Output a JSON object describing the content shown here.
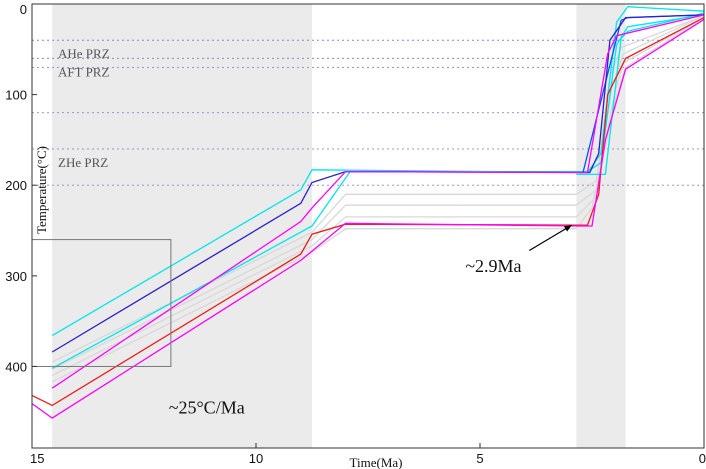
{
  "chart_data": {
    "type": "line",
    "title": "",
    "xlabel": "Time(Ma)",
    "ylabel": "Temperature(°C)",
    "xlim": [
      15,
      0
    ],
    "ylim": [
      0,
      490
    ],
    "x_ticks": [
      15,
      10,
      5,
      0
    ],
    "y_ticks": [
      0,
      100,
      200,
      300,
      400
    ],
    "x_tick_labels": [
      "15",
      "10",
      "5",
      "0"
    ],
    "y_tick_labels": [
      "0",
      "100",
      "200",
      "300",
      "400"
    ],
    "grid": false,
    "shaded_intervals": [
      {
        "from": 14.55,
        "to": 8.75,
        "color": "#ebebeb"
      },
      {
        "from": 2.85,
        "to": 1.75,
        "color": "#ebebeb"
      }
    ],
    "partial_retention_zones": [
      {
        "label": "AHe PRZ",
        "top": 40,
        "bottom": 70
      },
      {
        "label": "AFT PRZ",
        "top": 60,
        "bottom": 120
      },
      {
        "label": "ZHe PRZ",
        "top": 160,
        "bottom": 200
      }
    ],
    "series": [
      {
        "color": "#d8d8d8",
        "points": [
          [
            14.55,
            410
          ],
          [
            8.75,
            267
          ],
          [
            8,
            235
          ],
          [
            2.85,
            235
          ],
          [
            2.45,
            215
          ],
          [
            2.0,
            100
          ],
          [
            1.8,
            65
          ],
          [
            0,
            15
          ]
        ]
      },
      {
        "color": "#d8d8d8",
        "points": [
          [
            14.55,
            417
          ],
          [
            8.75,
            274
          ],
          [
            8,
            248
          ],
          [
            2.85,
            248
          ],
          [
            2.5,
            225
          ],
          [
            2.0,
            110
          ],
          [
            1.75,
            70
          ],
          [
            0,
            15
          ]
        ]
      },
      {
        "color": "#d8d8d8",
        "points": [
          [
            14.55,
            403
          ],
          [
            8.75,
            260
          ],
          [
            8,
            222
          ],
          [
            2.85,
            222
          ],
          [
            2.4,
            205
          ],
          [
            2.05,
            90
          ],
          [
            1.8,
            55
          ],
          [
            0,
            13
          ]
        ]
      },
      {
        "color": "#d8d8d8",
        "points": [
          [
            14.55,
            395
          ],
          [
            8.75,
            252
          ],
          [
            8,
            210
          ],
          [
            2.85,
            210
          ],
          [
            2.4,
            195
          ],
          [
            2.1,
            80
          ],
          [
            1.85,
            48
          ],
          [
            0,
            13
          ]
        ]
      },
      {
        "color": "#00e5ee",
        "points": [
          [
            14.55,
            366
          ],
          [
            9,
            205
          ],
          [
            8.75,
            183
          ],
          [
            2.6,
            186
          ],
          [
            2.3,
            165
          ],
          [
            1.95,
            20
          ],
          [
            1.7,
            3
          ],
          [
            0,
            8
          ]
        ]
      },
      {
        "color": "#00e5ee",
        "points": [
          [
            14.55,
            402
          ],
          [
            8.75,
            245
          ],
          [
            7.9,
            185
          ],
          [
            2.6,
            185
          ],
          [
            2.3,
            175
          ],
          [
            1.95,
            45
          ],
          [
            1.7,
            25
          ],
          [
            0,
            12
          ]
        ]
      },
      {
        "color": "#00e5ee",
        "points": [
          [
            2.85,
            188
          ],
          [
            2.2,
            188
          ],
          [
            1.85,
            38
          ],
          [
            1.7,
            30
          ],
          [
            0,
            10
          ]
        ]
      },
      {
        "color": "#0055ff",
        "points": [
          [
            2.7,
            186
          ],
          [
            1.85,
            18
          ],
          [
            1.7,
            15
          ],
          [
            0,
            12
          ]
        ]
      },
      {
        "color": "#2b1fc9",
        "points": [
          [
            14.55,
            384
          ],
          [
            9,
            220
          ],
          [
            8.75,
            197
          ],
          [
            8.0,
            185
          ],
          [
            2.85,
            186
          ],
          [
            2.55,
            186
          ],
          [
            2.35,
            165
          ],
          [
            2.1,
            40
          ],
          [
            1.75,
            15
          ],
          [
            0,
            12
          ]
        ]
      },
      {
        "color": "#ff00ff",
        "points": [
          [
            14.55,
            424
          ],
          [
            9,
            240
          ],
          [
            8.75,
            225
          ],
          [
            8.0,
            185
          ],
          [
            2.85,
            186
          ],
          [
            2.6,
            186
          ],
          [
            2.15,
            55
          ],
          [
            1.95,
            35
          ],
          [
            0,
            12
          ]
        ]
      },
      {
        "color": "#ee1c1c",
        "points": [
          [
            15,
            432
          ],
          [
            14.55,
            443
          ],
          [
            9,
            276
          ],
          [
            8.75,
            254
          ],
          [
            8.0,
            243
          ],
          [
            2.85,
            244
          ],
          [
            2.6,
            244
          ],
          [
            2.35,
            210
          ],
          [
            2.15,
            100
          ],
          [
            1.75,
            60
          ],
          [
            0,
            15
          ]
        ]
      },
      {
        "color": "#ff00ff",
        "points": [
          [
            15,
            441
          ],
          [
            14.55,
            457
          ],
          [
            9,
            283
          ],
          [
            8.0,
            242
          ],
          [
            2.85,
            245
          ],
          [
            2.5,
            245
          ],
          [
            2.2,
            150
          ],
          [
            1.75,
            72
          ],
          [
            0,
            17
          ]
        ]
      }
    ],
    "annotations": [
      {
        "text": "~25°C/Ma",
        "x": 11.1,
        "y": 452
      },
      {
        "text": "~2.9Ma",
        "x": 4.7,
        "y": 296
      },
      {
        "type": "arrow",
        "from": [
          3.9,
          272
        ],
        "to": [
          2.95,
          244
        ]
      },
      {
        "type": "box",
        "x0": 15,
        "x1": 11.9,
        "y0": 260,
        "y1": 400
      }
    ]
  }
}
